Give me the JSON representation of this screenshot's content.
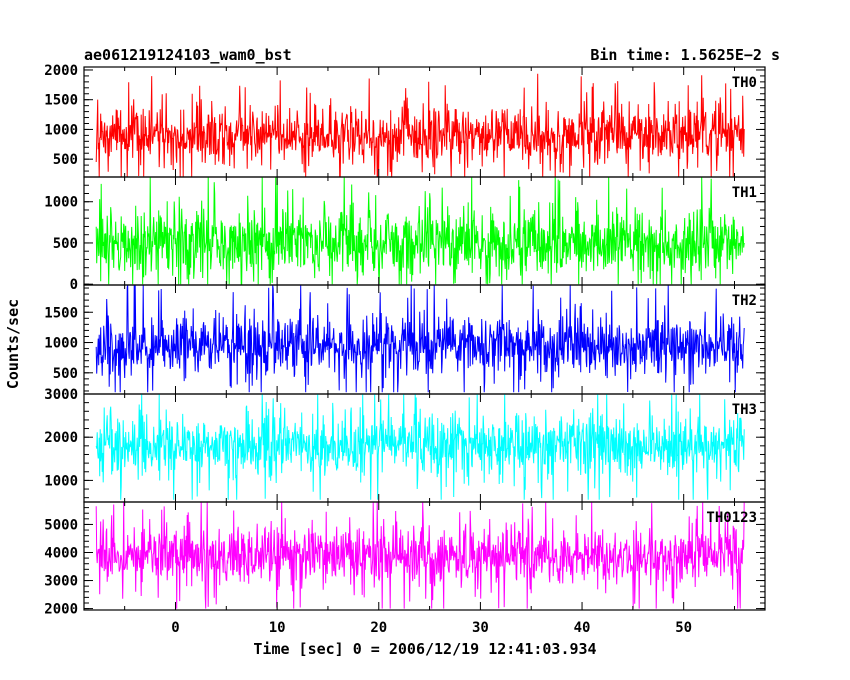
{
  "header": {
    "title_left": "ae061219124103_wam0_bst",
    "title_right": "Bin time: 1.5625E−2 s"
  },
  "chart_data": {
    "type": "line",
    "title": "ae061219124103_wam0_bst",
    "subtitle": "Bin time: 1.5625E−2 s",
    "xlabel": "Time [sec] 0 = 2006/12/19 12:41:03.934",
    "ylabel": "Counts/sec",
    "xlim": [
      -9,
      58
    ],
    "x_data_range": [
      -7.8,
      56
    ],
    "x_ticks": [
      0,
      10,
      20,
      30,
      40,
      50
    ],
    "x_tick_labels": [
      "0",
      "10",
      "20",
      "30",
      "40",
      "50"
    ],
    "grid": false,
    "panels": [
      {
        "name": "TH0",
        "color": "#ff0000",
        "ylim": [
          200,
          2050
        ],
        "y_ticks": [
          500,
          1000,
          1500,
          2000
        ],
        "y_tick_labels": [
          "500",
          "1000",
          "1500",
          "2000"
        ],
        "band": {
          "mean": 900,
          "low": 350,
          "high": 1450,
          "min": 200,
          "max": 2050
        }
      },
      {
        "name": "TH1",
        "color": "#00ff00",
        "ylim": [
          -10,
          1300
        ],
        "y_ticks": [
          0,
          500,
          1000
        ],
        "y_tick_labels": [
          "0",
          "500",
          "1000"
        ],
        "band": {
          "mean": 500,
          "low": 50,
          "high": 1000,
          "min": 0,
          "max": 1300
        }
      },
      {
        "name": "TH2",
        "color": "#0000ff",
        "ylim": [
          150,
          1950
        ],
        "y_ticks": [
          500,
          1000,
          1500
        ],
        "y_tick_labels": [
          "500",
          "1000",
          "1500"
        ],
        "band": {
          "mean": 950,
          "low": 400,
          "high": 1550,
          "min": 180,
          "max": 1950
        }
      },
      {
        "name": "TH3",
        "color": "#00ffff",
        "ylim": [
          500,
          3000
        ],
        "y_ticks": [
          1000,
          2000,
          3000
        ],
        "y_tick_labels": [
          "1000",
          "2000",
          "3000"
        ],
        "band": {
          "mean": 1800,
          "low": 950,
          "high": 2600,
          "min": 550,
          "max": 3000
        }
      },
      {
        "name": "TH0123",
        "color": "#ff00ff",
        "ylim": [
          1950,
          5800
        ],
        "y_ticks": [
          2000,
          3000,
          4000,
          5000
        ],
        "y_tick_labels": [
          "2000",
          "3000",
          "4000",
          "5000"
        ],
        "band": {
          "mean": 3900,
          "low": 2700,
          "high": 5000,
          "min": 2000,
          "max": 5800
        }
      }
    ]
  }
}
